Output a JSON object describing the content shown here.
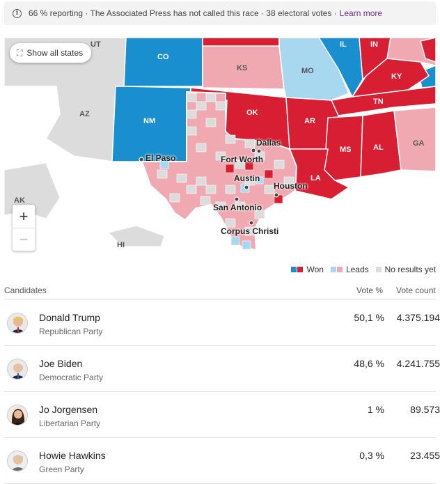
{
  "banner": {
    "text": "66 % reporting · The Associated Press has not called this race · 38 electoral votes ·",
    "link": "Learn more"
  },
  "map": {
    "show_all_label": "Show all states",
    "zoom_in": "+",
    "zoom_out": "−",
    "state_labels": [
      "UT",
      "CO",
      "KS",
      "MO",
      "IL",
      "IN",
      "AZ",
      "NM",
      "OK",
      "AR",
      "TN",
      "KY",
      "MS",
      "AL",
      "GA",
      "LA",
      "AK",
      "HI"
    ],
    "city_labels": [
      "Dallas",
      "Fort Worth",
      "El Paso",
      "Austin",
      "Houston",
      "San Antonio",
      "Corpus Christi"
    ],
    "colors": {
      "rep_won": "#d81e32",
      "rep_lead": "#f0a9b0",
      "dem_won": "#1a8fd0",
      "dem_lead": "#a7d8f0",
      "no_results": "#dcdcdc"
    }
  },
  "legend": {
    "won": "Won",
    "leads": "Leads",
    "no_results": "No results yet"
  },
  "table": {
    "headers": {
      "candidates": "Candidates",
      "vote_pct": "Vote %",
      "vote_count": "Vote count"
    },
    "rows": [
      {
        "name": "Donald Trump",
        "party": "Republican Party",
        "pct": "50,1 %",
        "count": "4.375.194"
      },
      {
        "name": "Joe Biden",
        "party": "Democratic Party",
        "pct": "48,6 %",
        "count": "4.241.755"
      },
      {
        "name": "Jo Jorgensen",
        "party": "Libertarian Party",
        "pct": "1 %",
        "count": "89.573"
      },
      {
        "name": "Howie Hawkins",
        "party": "Green Party",
        "pct": "0,3 %",
        "count": "23.455"
      }
    ]
  }
}
